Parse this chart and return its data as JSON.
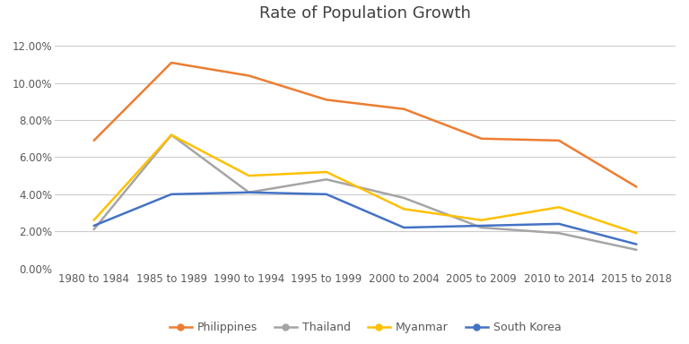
{
  "title": "Rate of Population Growth",
  "categories": [
    "1980 to 1984",
    "1985 to 1989",
    "1990 to 1994",
    "1995 to 1999",
    "2000 to 2004",
    "2005 to 2009",
    "2010 to 2014",
    "2015 to 2018"
  ],
  "series": [
    {
      "name": "Philippines",
      "color": "#ED7D31",
      "values": [
        0.069,
        0.111,
        0.104,
        0.091,
        0.086,
        0.07,
        0.069,
        0.044
      ]
    },
    {
      "name": "Thailand",
      "color": "#A5A5A5",
      "values": [
        0.021,
        0.072,
        0.041,
        0.048,
        0.038,
        0.022,
        0.019,
        0.01
      ]
    },
    {
      "name": "Myanmar",
      "color": "#FFC000",
      "values": [
        0.026,
        0.072,
        0.05,
        0.052,
        0.032,
        0.026,
        0.033,
        0.019
      ]
    },
    {
      "name": "South Korea",
      "color": "#4472C4",
      "values": [
        0.023,
        0.04,
        0.041,
        0.04,
        0.022,
        0.023,
        0.024,
        0.013
      ]
    }
  ],
  "ylim": [
    0.0,
    0.13
  ],
  "yticks": [
    0.0,
    0.02,
    0.04,
    0.06,
    0.08,
    0.1,
    0.12
  ],
  "background_color": "#FFFFFF",
  "grid_color": "#CCCCCC",
  "title_fontsize": 13,
  "legend_fontsize": 9,
  "tick_fontsize": 8.5
}
